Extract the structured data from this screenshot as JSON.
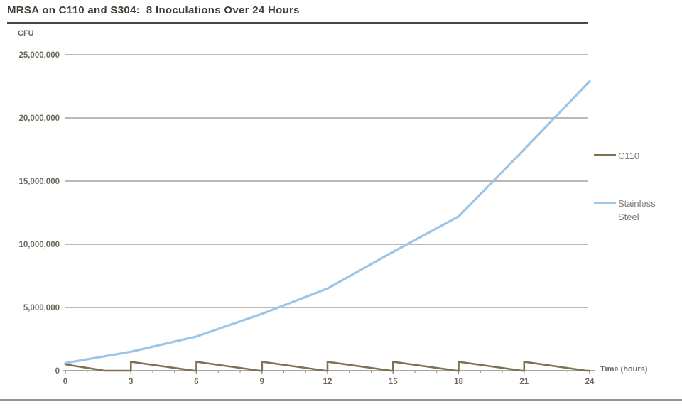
{
  "page": {
    "title": "MRSA on C110 and S304:  8 Inoculations Over 24 Hours"
  },
  "axis_labels": {
    "y_unit": "CFU",
    "x_unit": "Time (hours)"
  },
  "legend": {
    "position": "right",
    "items": [
      {
        "label": "C110",
        "color": "#7f7051"
      },
      {
        "label": "Stainless Steel",
        "color": "#9cc5e8"
      }
    ]
  },
  "chart_data": {
    "type": "line",
    "title": "MRSA on C110 and S304:  8 Inoculations Over 24 Hours",
    "xlabel": "Time (hours)",
    "ylabel": "CFU",
    "xlim": [
      0,
      24
    ],
    "ylim": [
      0,
      25000000
    ],
    "grid": "horizontal",
    "legend_position": "right",
    "x_ticks": [
      0,
      3,
      6,
      9,
      12,
      15,
      18,
      21,
      24
    ],
    "x_minor_tick_step": 1,
    "y_ticks": [
      0,
      5000000,
      10000000,
      15000000,
      20000000,
      25000000
    ],
    "y_tick_labels": [
      "0",
      "5,000,000",
      "10,000,000",
      "15,000,000",
      "20,000,000",
      "25,000,000"
    ],
    "inoculation_hours": [
      0,
      3,
      6,
      9,
      12,
      15,
      18,
      21
    ],
    "series": [
      {
        "name": "C110",
        "color": "#7f7051",
        "points": [
          [
            0,
            500000
          ],
          [
            1.8,
            0
          ],
          [
            3,
            0
          ],
          [
            3,
            700000
          ],
          [
            5.9,
            0
          ],
          [
            6,
            0
          ],
          [
            6,
            700000
          ],
          [
            8.9,
            0
          ],
          [
            9,
            0
          ],
          [
            9,
            700000
          ],
          [
            11.9,
            0
          ],
          [
            12,
            0
          ],
          [
            12,
            700000
          ],
          [
            14.9,
            0
          ],
          [
            15,
            0
          ],
          [
            15,
            700000
          ],
          [
            17.9,
            0
          ],
          [
            18,
            0
          ],
          [
            18,
            700000
          ],
          [
            20.9,
            0
          ],
          [
            21,
            0
          ],
          [
            21,
            700000
          ],
          [
            23.85,
            0
          ],
          [
            24,
            0
          ]
        ]
      },
      {
        "name": "Stainless Steel",
        "color": "#9cc5e8",
        "points": [
          [
            0,
            600000
          ],
          [
            3,
            1500000
          ],
          [
            6,
            2700000
          ],
          [
            9,
            4500000
          ],
          [
            12,
            6500000
          ],
          [
            15,
            9400000
          ],
          [
            18,
            12200000
          ],
          [
            21,
            17500000
          ],
          [
            24,
            22900000
          ]
        ]
      }
    ],
    "colors": {
      "title": "#433d36",
      "tick_labels": "#6e665b",
      "legend_text": "#7d7872",
      "gridline": "#a5a19b",
      "axis_line": "#8a8a8a"
    }
  }
}
